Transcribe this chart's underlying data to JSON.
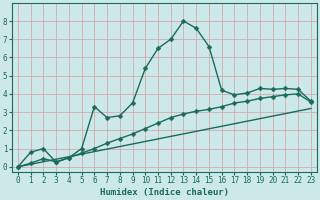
{
  "xlabel": "Humidex (Indice chaleur)",
  "background_color": "#cce8e8",
  "grid_color": "#d4eeee",
  "line_color": "#1a6b5a",
  "xlim": [
    -0.5,
    23.5
  ],
  "ylim": [
    -0.3,
    9.0
  ],
  "xticks": [
    0,
    1,
    2,
    3,
    4,
    5,
    6,
    7,
    8,
    9,
    10,
    11,
    12,
    13,
    14,
    15,
    16,
    17,
    18,
    19,
    20,
    21,
    22,
    23
  ],
  "yticks": [
    0,
    1,
    2,
    3,
    4,
    5,
    6,
    7,
    8
  ],
  "series": [
    {
      "x": [
        0,
        1,
        2,
        3,
        4,
        5,
        6,
        7,
        8,
        9,
        10,
        11,
        12,
        13,
        14,
        15,
        16,
        17,
        18,
        19,
        20,
        21,
        22,
        23
      ],
      "y": [
        0.0,
        0.8,
        1.0,
        0.25,
        0.5,
        1.0,
        3.3,
        2.7,
        2.8,
        3.5,
        5.4,
        6.5,
        7.0,
        8.0,
        7.6,
        6.6,
        4.2,
        3.95,
        4.05,
        4.3,
        4.25,
        4.3,
        4.25,
        3.6
      ],
      "marker": "D",
      "markersize": 2.5,
      "linewidth": 1.0,
      "has_marker": true
    },
    {
      "x": [
        0,
        1,
        2,
        3,
        4,
        5,
        6,
        7,
        8,
        9,
        10,
        11,
        12,
        13,
        14,
        15,
        16,
        17,
        18,
        19,
        20,
        21,
        22,
        23
      ],
      "y": [
        0.0,
        0.2,
        0.45,
        0.27,
        0.5,
        0.75,
        1.0,
        1.3,
        1.55,
        1.8,
        2.1,
        2.4,
        2.7,
        2.9,
        3.05,
        3.15,
        3.3,
        3.5,
        3.6,
        3.75,
        3.85,
        3.95,
        4.0,
        3.55
      ],
      "marker": "D",
      "markersize": 2.5,
      "linewidth": 1.0,
      "has_marker": true
    },
    {
      "x": [
        0,
        23
      ],
      "y": [
        0.0,
        3.2
      ],
      "marker": null,
      "markersize": 0,
      "linewidth": 1.0,
      "has_marker": false
    }
  ]
}
